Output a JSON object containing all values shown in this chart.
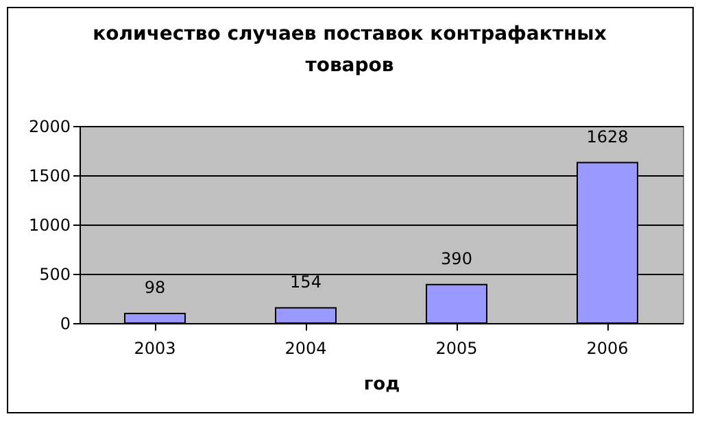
{
  "chart_data": {
    "type": "bar",
    "title": "количество случаев поставок контрафактных товаров",
    "xlabel": "год",
    "categories": [
      "2003",
      "2004",
      "2005",
      "2006"
    ],
    "values": [
      98,
      154,
      390,
      1628
    ],
    "color": "#9999ff",
    "ylim": [
      0,
      2000
    ],
    "yticks": [
      0,
      500,
      1000,
      1500,
      2000
    ],
    "grid": "y",
    "data_labels": true
  }
}
